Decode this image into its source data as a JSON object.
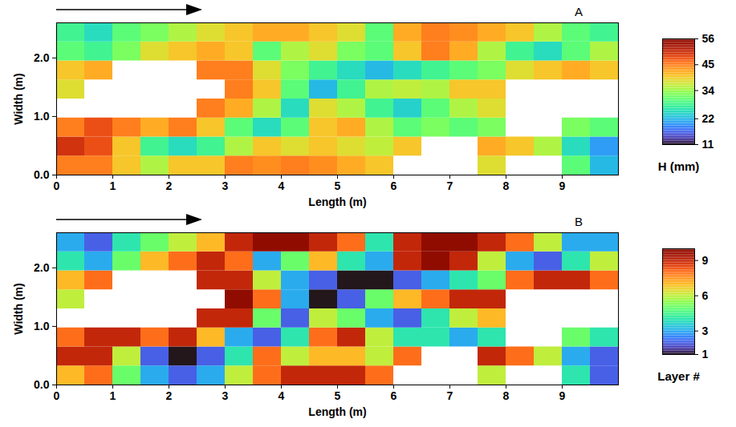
{
  "chart_data": [
    {
      "type": "heatmap",
      "panel": "A",
      "xlabel": "Length (m)",
      "ylabel": "Width (m)",
      "xlim": [
        0,
        10
      ],
      "xticks": [
        0,
        1,
        2,
        3,
        4,
        5,
        6,
        7,
        8,
        9
      ],
      "ylim": [
        0,
        2.6
      ],
      "yticks": [
        0,
        1,
        2
      ],
      "x": [
        0.25,
        0.75,
        1.25,
        1.75,
        2.25,
        2.75,
        3.25,
        3.75,
        4.25,
        4.75,
        5.25,
        5.75,
        6.25,
        6.75,
        7.25,
        7.75,
        8.25,
        8.75,
        9.25,
        9.75
      ],
      "y": [
        0.1625,
        0.4875,
        0.8125,
        1.1375,
        1.4625,
        1.7875,
        2.1125,
        2.4375
      ],
      "values": [
        [
          45,
          45,
          40,
          35,
          40,
          40,
          45,
          44,
          45,
          44,
          42,
          40,
          null,
          null,
          null,
          38,
          null,
          null,
          30,
          22
        ],
        [
          50,
          48,
          40,
          28,
          25,
          28,
          35,
          40,
          38,
          40,
          38,
          36,
          40,
          null,
          null,
          42,
          40,
          35,
          25,
          20
        ],
        [
          45,
          48,
          45,
          42,
          45,
          40,
          30,
          25,
          30,
          40,
          42,
          35,
          30,
          32,
          30,
          32,
          null,
          null,
          32,
          30
        ],
        [
          null,
          null,
          null,
          null,
          null,
          45,
          42,
          35,
          25,
          38,
          35,
          28,
          24,
          30,
          35,
          38,
          null,
          null,
          null,
          null
        ],
        [
          38,
          null,
          null,
          null,
          null,
          null,
          45,
          40,
          30,
          22,
          28,
          35,
          36,
          35,
          40,
          40,
          null,
          null,
          null,
          null
        ],
        [
          40,
          42,
          null,
          null,
          null,
          45,
          45,
          38,
          32,
          28,
          25,
          22,
          25,
          28,
          30,
          32,
          38,
          40,
          42,
          40
        ],
        [
          30,
          28,
          32,
          38,
          40,
          42,
          40,
          30,
          35,
          38,
          32,
          30,
          40,
          45,
          42,
          35,
          28,
          25,
          30,
          35
        ],
        [
          28,
          25,
          30,
          32,
          35,
          38,
          40,
          42,
          42,
          40,
          38,
          30,
          42,
          45,
          44,
          42,
          40,
          35,
          30,
          28
        ]
      ],
      "colorbar_label": "H (mm)",
      "colorbar_lim": [
        11,
        56
      ],
      "colorbar_ticks": [
        11,
        22,
        34,
        45,
        56
      ]
    },
    {
      "type": "heatmap",
      "panel": "B",
      "xlabel": "Length (m)",
      "ylabel": "Width (m)",
      "xlim": [
        0,
        10
      ],
      "xticks": [
        0,
        1,
        2,
        3,
        4,
        5,
        6,
        7,
        8,
        9
      ],
      "ylim": [
        0,
        2.6
      ],
      "yticks": [
        0,
        1,
        2
      ],
      "x": [
        0.25,
        0.75,
        1.25,
        1.75,
        2.25,
        2.75,
        3.25,
        3.75,
        4.25,
        4.75,
        5.25,
        5.75,
        6.25,
        6.75,
        7.25,
        7.75,
        8.25,
        8.75,
        9.25,
        9.75
      ],
      "y": [
        0.1625,
        0.4875,
        0.8125,
        1.1375,
        1.4625,
        1.7875,
        2.1125,
        2.4375
      ],
      "values": [
        [
          7,
          8,
          5,
          3,
          2,
          3,
          6,
          8,
          9,
          9,
          9,
          8,
          null,
          null,
          null,
          6,
          null,
          null,
          4,
          2
        ],
        [
          9,
          9,
          6,
          2,
          1,
          2,
          4,
          8,
          6,
          7,
          7,
          6,
          8,
          null,
          null,
          9,
          8,
          6,
          3,
          2
        ],
        [
          8,
          9,
          9,
          8,
          9,
          7,
          3,
          2,
          4,
          8,
          9,
          6,
          4,
          4,
          3,
          4,
          null,
          null,
          5,
          4
        ],
        [
          null,
          null,
          null,
          null,
          null,
          9,
          9,
          5,
          2,
          6,
          5,
          3,
          2,
          4,
          6,
          7,
          null,
          null,
          null,
          null
        ],
        [
          6,
          null,
          null,
          null,
          null,
          null,
          10,
          8,
          3,
          1,
          2,
          5,
          7,
          8,
          9,
          9,
          null,
          null,
          null,
          null
        ],
        [
          7,
          8,
          null,
          null,
          null,
          9,
          9,
          6,
          3,
          2,
          1,
          1,
          2,
          3,
          4,
          5,
          8,
          9,
          9,
          8
        ],
        [
          4,
          3,
          5,
          7,
          8,
          9,
          8,
          3,
          5,
          7,
          4,
          3,
          9,
          10,
          9,
          6,
          3,
          2,
          4,
          6
        ],
        [
          3,
          2,
          4,
          5,
          6,
          7,
          9,
          10,
          10,
          9,
          8,
          4,
          9,
          10,
          10,
          9,
          8,
          6,
          3,
          3
        ]
      ],
      "colorbar_label": "Layer #",
      "colorbar_lim": [
        1,
        10
      ],
      "colorbar_ticks": [
        1,
        3,
        6,
        9
      ]
    }
  ]
}
